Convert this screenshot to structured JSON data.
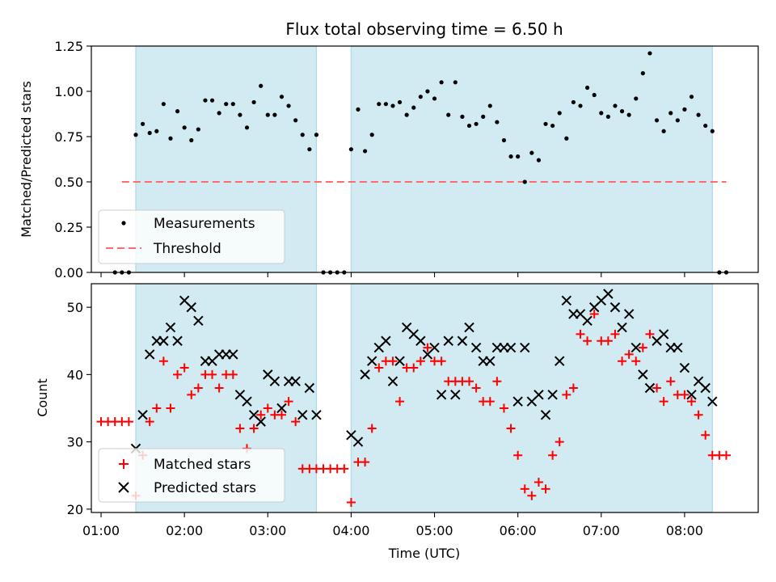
{
  "title": "Flux total observing time = 6.50 h",
  "colors": {
    "shade": "#add8e6",
    "threshold": "#ff6b6b",
    "matched": "#ff0000",
    "predicted": "#000000"
  },
  "chart_data": [
    {
      "type": "scatter",
      "ylabel": "Matched/Predicted stars",
      "ylim": [
        0,
        1.25
      ],
      "yticks": [
        "0.00",
        "0.25",
        "0.50",
        "0.75",
        "1.00",
        "1.25"
      ],
      "xlim": [
        "00:53",
        "08:53"
      ],
      "shaded_periods": [
        [
          "01:25",
          "03:35"
        ],
        [
          "04:00",
          "08:20"
        ]
      ],
      "threshold": {
        "name": "Threshold",
        "x": [
          "01:15",
          "08:30"
        ],
        "y": 0.5
      },
      "legend": {
        "placement": "lower-left",
        "entries": [
          "Measurements",
          "Threshold"
        ]
      },
      "series": [
        {
          "name": "Measurements",
          "x": [
            "01:10",
            "01:15",
            "01:20",
            "01:25",
            "01:30",
            "01:35",
            "01:40",
            "01:45",
            "01:50",
            "01:55",
            "02:00",
            "02:05",
            "02:10",
            "02:15",
            "02:20",
            "02:25",
            "02:30",
            "02:35",
            "02:40",
            "02:45",
            "02:50",
            "02:55",
            "03:00",
            "03:05",
            "03:10",
            "03:15",
            "03:20",
            "03:25",
            "03:30",
            "03:35",
            "03:40",
            "03:45",
            "03:50",
            "03:55",
            "04:00",
            "04:05",
            "04:10",
            "04:15",
            "04:20",
            "04:25",
            "04:30",
            "04:35",
            "04:40",
            "04:45",
            "04:50",
            "04:55",
            "05:00",
            "05:05",
            "05:10",
            "05:15",
            "05:20",
            "05:25",
            "05:30",
            "05:35",
            "05:40",
            "05:45",
            "05:50",
            "05:55",
            "06:00",
            "06:05",
            "06:10",
            "06:15",
            "06:20",
            "06:25",
            "06:30",
            "06:35",
            "06:40",
            "06:45",
            "06:50",
            "06:55",
            "07:00",
            "07:05",
            "07:10",
            "07:15",
            "07:20",
            "07:25",
            "07:30",
            "07:35",
            "07:40",
            "07:45",
            "07:50",
            "07:55",
            "08:00",
            "08:05",
            "08:10",
            "08:15",
            "08:20",
            "08:25",
            "08:30"
          ],
          "y": [
            0,
            0,
            0,
            0.76,
            0.82,
            0.77,
            0.78,
            0.93,
            0.74,
            0.89,
            0.8,
            0.73,
            0.79,
            0.95,
            0.95,
            0.88,
            0.93,
            0.93,
            0.87,
            0.8,
            0.94,
            1.03,
            0.87,
            0.87,
            0.97,
            0.92,
            0.84,
            0.76,
            0.68,
            0.76,
            0,
            0,
            0,
            0,
            0.68,
            0.9,
            0.67,
            0.76,
            0.93,
            0.93,
            0.92,
            0.94,
            0.87,
            0.91,
            0.97,
            1.0,
            0.96,
            1.05,
            0.87,
            1.05,
            0.86,
            0.81,
            0.82,
            0.86,
            0.92,
            0.83,
            0.73,
            0.64,
            0.64,
            0.5,
            0.66,
            0.62,
            0.82,
            0.81,
            0.88,
            0.74,
            0.94,
            0.92,
            1.02,
            0.98,
            0.88,
            0.86,
            0.92,
            0.89,
            0.87,
            0.96,
            1.1,
            1.21,
            0.84,
            0.78,
            0.88,
            0.84,
            0.9,
            0.97,
            0.87,
            0.81,
            0.78,
            0,
            0
          ]
        }
      ]
    },
    {
      "type": "scatter",
      "ylabel": "Count",
      "xlabel": "Time (UTC)",
      "ylim": [
        19.5,
        53.5
      ],
      "yticks": [
        "20",
        "30",
        "40",
        "50"
      ],
      "xlim": [
        "00:53",
        "08:53"
      ],
      "xticks": [
        "01:00",
        "02:00",
        "03:00",
        "04:00",
        "05:00",
        "06:00",
        "07:00",
        "08:00"
      ],
      "shaded_periods": [
        [
          "01:25",
          "03:35"
        ],
        [
          "04:00",
          "08:20"
        ]
      ],
      "legend": {
        "placement": "lower-left",
        "entries": [
          "Matched stars",
          "Predicted stars"
        ]
      },
      "series": [
        {
          "name": "Matched stars",
          "x": [
            "01:00",
            "01:05",
            "01:10",
            "01:15",
            "01:20",
            "01:25",
            "01:30",
            "01:35",
            "01:40",
            "01:45",
            "01:50",
            "01:55",
            "02:00",
            "02:05",
            "02:10",
            "02:15",
            "02:20",
            "02:25",
            "02:30",
            "02:35",
            "02:40",
            "02:45",
            "02:50",
            "02:55",
            "03:00",
            "03:05",
            "03:10",
            "03:15",
            "03:20",
            "03:25",
            "03:30",
            "03:35",
            "03:40",
            "03:45",
            "03:50",
            "03:55",
            "04:00",
            "04:05",
            "04:10",
            "04:15",
            "04:20",
            "04:25",
            "04:30",
            "04:35",
            "04:40",
            "04:45",
            "04:50",
            "04:55",
            "05:00",
            "05:05",
            "05:10",
            "05:15",
            "05:20",
            "05:25",
            "05:30",
            "05:35",
            "05:40",
            "05:45",
            "05:50",
            "05:55",
            "06:00",
            "06:05",
            "06:10",
            "06:15",
            "06:20",
            "06:25",
            "06:30",
            "06:35",
            "06:40",
            "06:45",
            "06:50",
            "06:55",
            "07:00",
            "07:05",
            "07:10",
            "07:15",
            "07:20",
            "07:25",
            "07:30",
            "07:35",
            "07:40",
            "07:45",
            "07:50",
            "07:55",
            "08:00",
            "08:05",
            "08:10",
            "08:15",
            "08:20",
            "08:25",
            "08:30"
          ],
          "y": [
            33,
            33,
            33,
            33,
            33,
            22,
            28,
            33,
            35,
            42,
            35,
            40,
            41,
            37,
            38,
            40,
            40,
            38,
            40,
            40,
            32,
            29,
            32,
            34,
            35,
            34,
            34,
            36,
            33,
            26,
            26,
            26,
            26,
            26,
            26,
            26,
            21,
            27,
            27,
            32,
            41,
            42,
            42,
            36,
            41,
            41,
            42,
            44,
            42,
            42,
            39,
            39,
            39,
            39,
            38,
            36,
            36,
            39,
            35,
            32,
            28,
            23,
            22,
            24,
            23,
            28,
            30,
            37,
            38,
            46,
            45,
            49,
            45,
            45,
            46,
            42,
            43,
            42,
            44,
            46,
            38,
            36,
            39,
            37,
            37,
            36,
            34,
            31,
            28,
            28,
            28
          ]
        },
        {
          "name": "Predicted stars",
          "x": [
            "01:25",
            "01:30",
            "01:35",
            "01:40",
            "01:45",
            "01:50",
            "01:55",
            "02:00",
            "02:05",
            "02:10",
            "02:15",
            "02:20",
            "02:25",
            "02:30",
            "02:35",
            "02:40",
            "02:45",
            "02:50",
            "02:55",
            "03:00",
            "03:05",
            "03:10",
            "03:15",
            "03:20",
            "03:25",
            "03:30",
            "03:35",
            "04:00",
            "04:05",
            "04:10",
            "04:15",
            "04:20",
            "04:25",
            "04:30",
            "04:35",
            "04:40",
            "04:45",
            "04:50",
            "04:55",
            "05:00",
            "05:05",
            "05:10",
            "05:15",
            "05:20",
            "05:25",
            "05:30",
            "05:35",
            "05:40",
            "05:45",
            "05:50",
            "05:55",
            "06:00",
            "06:05",
            "06:10",
            "06:15",
            "06:20",
            "06:25",
            "06:30",
            "06:35",
            "06:40",
            "06:45",
            "06:50",
            "06:55",
            "07:00",
            "07:05",
            "07:10",
            "07:15",
            "07:20",
            "07:25",
            "07:30",
            "07:35",
            "07:40",
            "07:45",
            "07:50",
            "07:55",
            "08:00",
            "08:05",
            "08:10",
            "08:15",
            "08:20"
          ],
          "y": [
            29,
            34,
            43,
            45,
            45,
            47,
            45,
            51,
            50,
            48,
            42,
            42,
            43,
            43,
            43,
            37,
            36,
            34,
            33,
            40,
            39,
            35,
            39,
            39,
            34,
            38,
            34,
            31,
            30,
            40,
            42,
            44,
            45,
            39,
            42,
            47,
            46,
            45,
            43,
            44,
            37,
            45,
            37,
            45,
            47,
            44,
            42,
            42,
            44,
            44,
            44,
            36,
            44,
            36,
            37,
            34,
            37,
            42,
            51,
            49,
            49,
            48,
            50,
            51,
            52,
            50,
            47,
            49,
            44,
            40,
            38,
            45,
            46,
            44,
            44,
            41,
            37,
            39,
            38,
            36
          ]
        }
      ]
    }
  ]
}
